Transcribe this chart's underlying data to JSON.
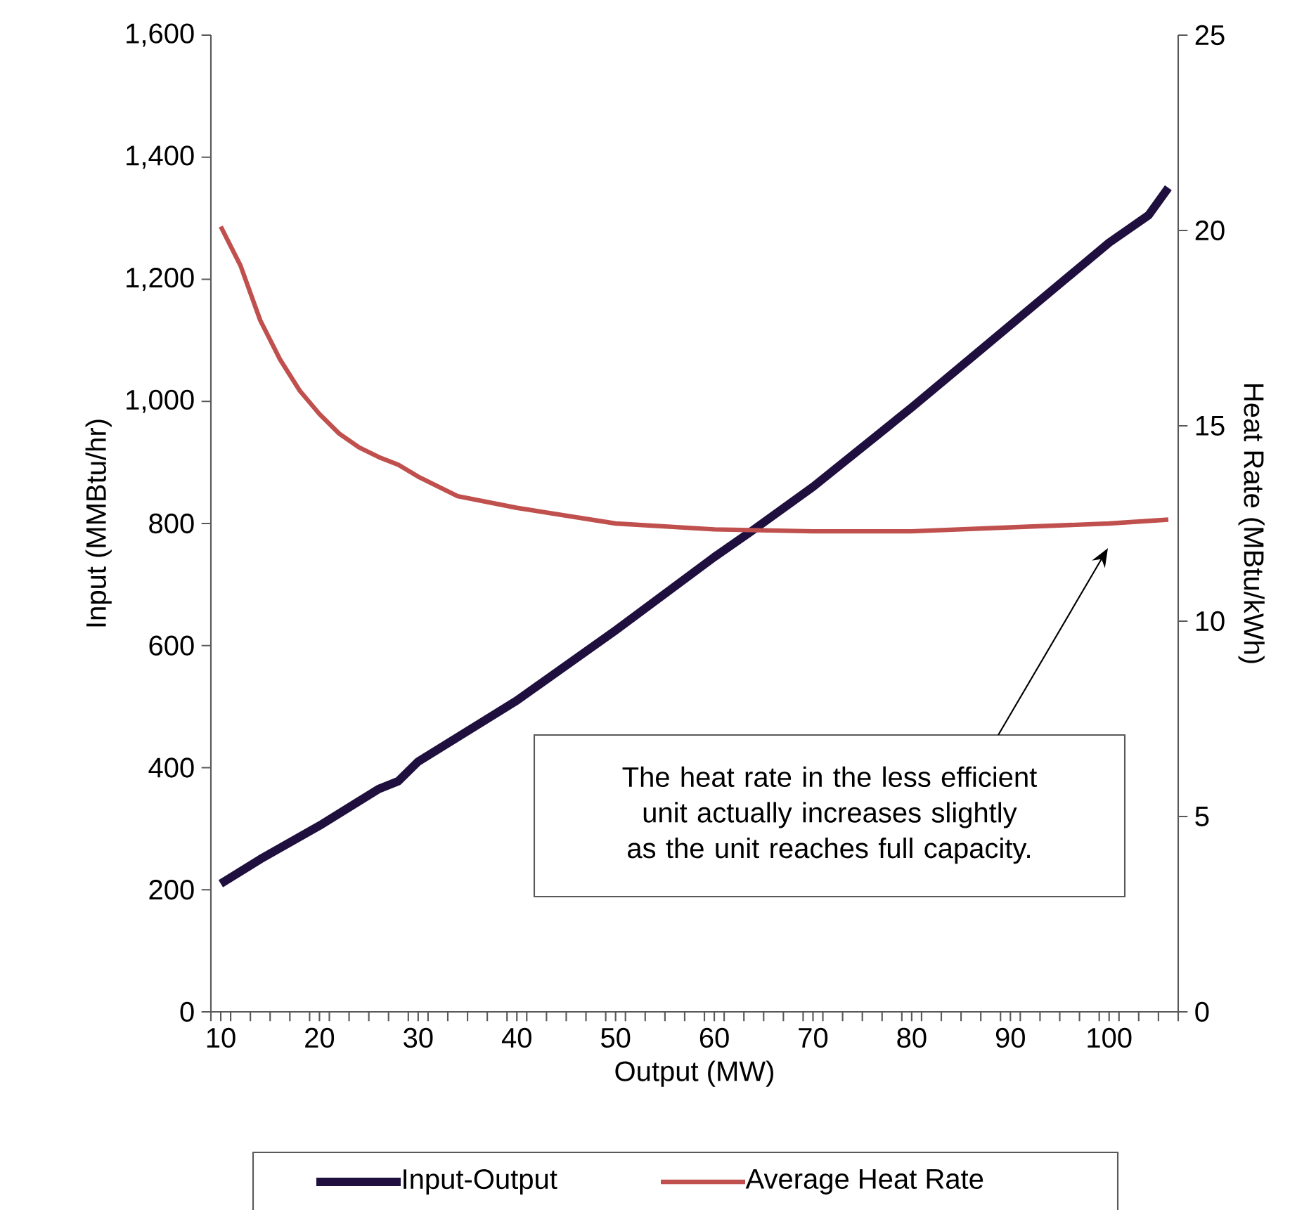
{
  "chart_data": {
    "type": "line",
    "xlabel": "Output (MW)",
    "ylabel": "Input (MMBtu/hr)",
    "y2label": "Heat Rate (MBtu/kWh)",
    "xlim": [
      9,
      107
    ],
    "xticks": [
      {
        "value": 9,
        "label": null
      },
      {
        "value": 10,
        "label": "10"
      },
      {
        "value": 11,
        "label": null
      },
      {
        "value": 13,
        "label": null
      },
      {
        "value": 15,
        "label": null
      },
      {
        "value": 17,
        "label": null
      },
      {
        "value": 19,
        "label": null
      },
      {
        "value": 20,
        "label": "20"
      },
      {
        "value": 21,
        "label": null
      },
      {
        "value": 23,
        "label": null
      },
      {
        "value": 25,
        "label": null
      },
      {
        "value": 27,
        "label": null
      },
      {
        "value": 29,
        "label": null
      },
      {
        "value": 30,
        "label": "30"
      },
      {
        "value": 31,
        "label": null
      },
      {
        "value": 33,
        "label": null
      },
      {
        "value": 35,
        "label": null
      },
      {
        "value": 37,
        "label": null
      },
      {
        "value": 39,
        "label": null
      },
      {
        "value": 40,
        "label": "40"
      },
      {
        "value": 41,
        "label": null
      },
      {
        "value": 43,
        "label": null
      },
      {
        "value": 45,
        "label": null
      },
      {
        "value": 47,
        "label": null
      },
      {
        "value": 49,
        "label": null
      },
      {
        "value": 50,
        "label": "50"
      },
      {
        "value": 51,
        "label": null
      },
      {
        "value": 53,
        "label": null
      },
      {
        "value": 55,
        "label": null
      },
      {
        "value": 57,
        "label": null
      },
      {
        "value": 59,
        "label": null
      },
      {
        "value": 60,
        "label": "60"
      },
      {
        "value": 61,
        "label": null
      },
      {
        "value": 63,
        "label": null
      },
      {
        "value": 65,
        "label": null
      },
      {
        "value": 67,
        "label": null
      },
      {
        "value": 69,
        "label": null
      },
      {
        "value": 70,
        "label": "70"
      },
      {
        "value": 71,
        "label": null
      },
      {
        "value": 73,
        "label": null
      },
      {
        "value": 75,
        "label": null
      },
      {
        "value": 77,
        "label": null
      },
      {
        "value": 79,
        "label": null
      },
      {
        "value": 80,
        "label": "80"
      },
      {
        "value": 81,
        "label": null
      },
      {
        "value": 83,
        "label": null
      },
      {
        "value": 85,
        "label": null
      },
      {
        "value": 87,
        "label": null
      },
      {
        "value": 89,
        "label": null
      },
      {
        "value": 90,
        "label": "90"
      },
      {
        "value": 91,
        "label": null
      },
      {
        "value": 93,
        "label": null
      },
      {
        "value": 95,
        "label": null
      },
      {
        "value": 97,
        "label": null
      },
      {
        "value": 99,
        "label": null
      },
      {
        "value": 100,
        "label": "100"
      },
      {
        "value": 101,
        "label": null
      },
      {
        "value": 103,
        "label": null
      },
      {
        "value": 105,
        "label": null
      },
      {
        "value": 107,
        "label": null
      }
    ],
    "ylim": [
      0,
      1600
    ],
    "yticks": [
      0,
      200,
      400,
      600,
      800,
      {
        "value": 1000,
        "label": "1,000"
      },
      {
        "value": 1200,
        "label": "1,200"
      },
      {
        "value": 1400,
        "label": "1,400"
      },
      {
        "value": 1600,
        "label": "1,600"
      }
    ],
    "y2lim": [
      0,
      25
    ],
    "y2ticks": [
      0,
      5,
      10,
      15,
      20,
      25
    ],
    "series": [
      {
        "name": "Input-Output",
        "color": "#1f0f3f",
        "axis": "y",
        "x": [
          10,
          14,
          20,
          26,
          28,
          30,
          40,
          50,
          60,
          64,
          70,
          80,
          90,
          100,
          104,
          106
        ],
        "values": [
          210,
          250,
          305,
          365,
          378,
          410,
          510,
          625,
          745,
          790,
          860,
          990,
          1125,
          1260,
          1305,
          1350
        ]
      },
      {
        "name": "Average Heat Rate",
        "color": "#c0504d",
        "axis": "y2",
        "x": [
          10,
          12,
          14,
          16,
          18,
          20,
          22,
          24,
          26,
          28,
          30,
          34,
          40,
          50,
          60,
          70,
          80,
          90,
          100,
          106
        ],
        "values": [
          20.1,
          19.1,
          17.7,
          16.7,
          15.9,
          15.3,
          14.8,
          14.45,
          14.2,
          14.0,
          13.7,
          13.2,
          12.9,
          12.5,
          12.35,
          12.3,
          12.3,
          12.4,
          12.5,
          12.6
        ]
      }
    ],
    "annotations": [
      "The heat rate in the less efficient unit actually increases slightly as the unit reaches full capacity."
    ],
    "grid": false,
    "legend": "bottom",
    "marker": "none",
    "line_style": "solid"
  }
}
